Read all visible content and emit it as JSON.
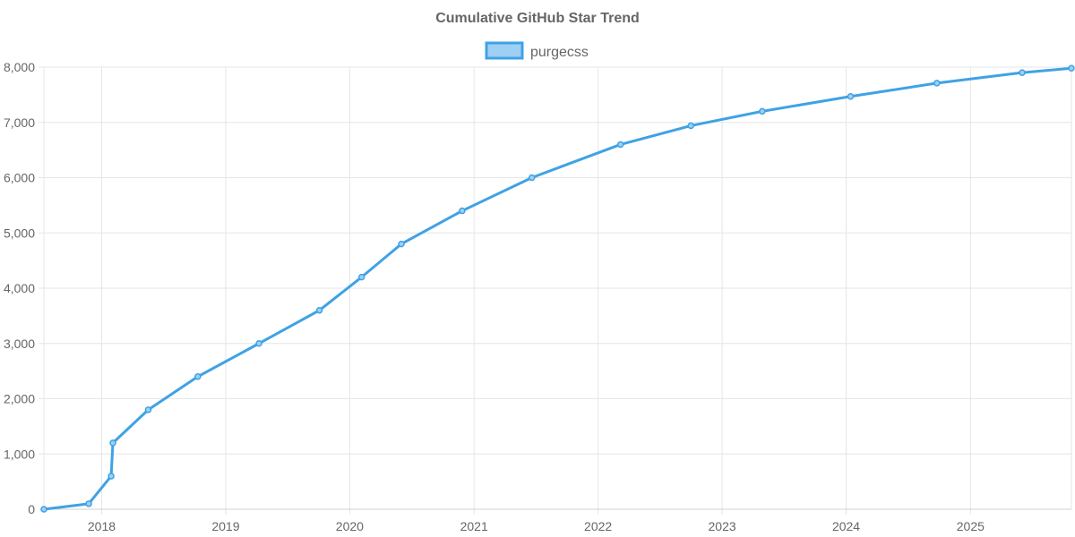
{
  "chart_data": {
    "type": "line",
    "title": "Cumulative GitHub Star Trend",
    "xlabel": "",
    "ylabel": "",
    "legend": {
      "position": "top-center",
      "entries": [
        "purgecss"
      ]
    },
    "grid": true,
    "colors": {
      "line": "#3fa2e4",
      "legend_fill": "#9ed0f5",
      "grid": "#e6e6e6",
      "text": "#666666"
    },
    "x_axis": {
      "type": "date",
      "range": [
        "2017-07-15",
        "2025-10-25"
      ],
      "tick_labels": [
        "2018",
        "2019",
        "2020",
        "2021",
        "2022",
        "2023",
        "2024",
        "2025"
      ],
      "tick_dates": [
        "2018-01-01",
        "2019-01-01",
        "2020-01-01",
        "2021-01-01",
        "2022-01-01",
        "2023-01-01",
        "2024-01-01",
        "2025-01-01"
      ]
    },
    "y_axis": {
      "range": [
        0,
        8000
      ],
      "tick_values": [
        0,
        1000,
        2000,
        3000,
        4000,
        5000,
        6000,
        7000,
        8000
      ],
      "tick_labels": [
        "0",
        "1,000",
        "2,000",
        "3,000",
        "4,000",
        "5,000",
        "6,000",
        "7,000",
        "8,000"
      ]
    },
    "series": [
      {
        "name": "purgecss",
        "points": [
          {
            "x": "2017-07-15",
            "y": 0
          },
          {
            "x": "2017-11-24",
            "y": 100
          },
          {
            "x": "2018-01-29",
            "y": 600
          },
          {
            "x": "2018-02-03",
            "y": 1200
          },
          {
            "x": "2018-05-18",
            "y": 1800
          },
          {
            "x": "2018-10-11",
            "y": 2400
          },
          {
            "x": "2019-04-09",
            "y": 3000
          },
          {
            "x": "2019-10-04",
            "y": 3600
          },
          {
            "x": "2020-02-05",
            "y": 4200
          },
          {
            "x": "2020-06-01",
            "y": 4800
          },
          {
            "x": "2020-11-27",
            "y": 5400
          },
          {
            "x": "2021-06-20",
            "y": 6000
          },
          {
            "x": "2022-03-08",
            "y": 6600
          },
          {
            "x": "2022-10-01",
            "y": 6940
          },
          {
            "x": "2023-04-29",
            "y": 7200
          },
          {
            "x": "2024-01-14",
            "y": 7470
          },
          {
            "x": "2024-09-24",
            "y": 7710
          },
          {
            "x": "2025-06-02",
            "y": 7900
          },
          {
            "x": "2025-10-25",
            "y": 7980
          }
        ]
      }
    ]
  }
}
